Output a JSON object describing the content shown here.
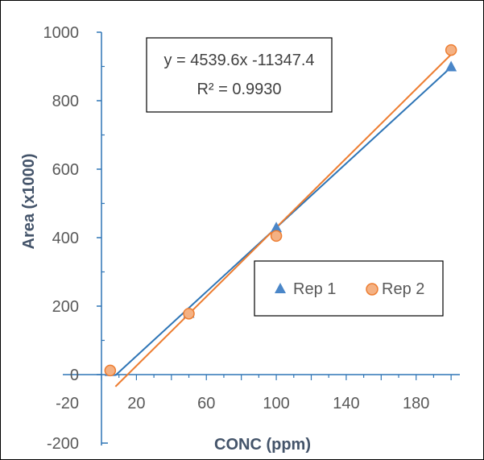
{
  "chart_data": {
    "type": "scatter",
    "xlabel": "CONC (ppm)",
    "ylabel": "Area (x1000)",
    "x_ticks": [
      20,
      60,
      100,
      140,
      180
    ],
    "y_ticks": [
      -200,
      -20,
      0,
      200,
      400,
      600,
      800,
      1000
    ],
    "y_tick_labels": [
      "-200",
      "-20",
      "0",
      "200",
      "400",
      "600",
      "800",
      "1000"
    ],
    "series": [
      {
        "name": "Rep 1",
        "marker": "triangle",
        "color": "#4a86c8",
        "x": [
          5,
          50,
          100,
          200
        ],
        "y": [
          10,
          180,
          430,
          900
        ]
      },
      {
        "name": "Rep 2",
        "marker": "circle",
        "color": "#ed7d31",
        "x": [
          5,
          50,
          100,
          200
        ],
        "y": [
          12,
          178,
          405,
          948
        ]
      }
    ],
    "trendlines": [
      {
        "series": "Rep 1",
        "color": "#2e75b6",
        "x_range": [
          8,
          200
        ],
        "y_range": [
          -2,
          898
        ]
      },
      {
        "series": "Rep 2",
        "color": "#ed7d31",
        "x_range": [
          8,
          200
        ],
        "y_range": [
          -35,
          935
        ]
      }
    ],
    "equation_box": {
      "line1": "y = 4539.6x -11347.4",
      "line2": "R² = 0.9930"
    },
    "legend": {
      "position": "center-right"
    }
  }
}
